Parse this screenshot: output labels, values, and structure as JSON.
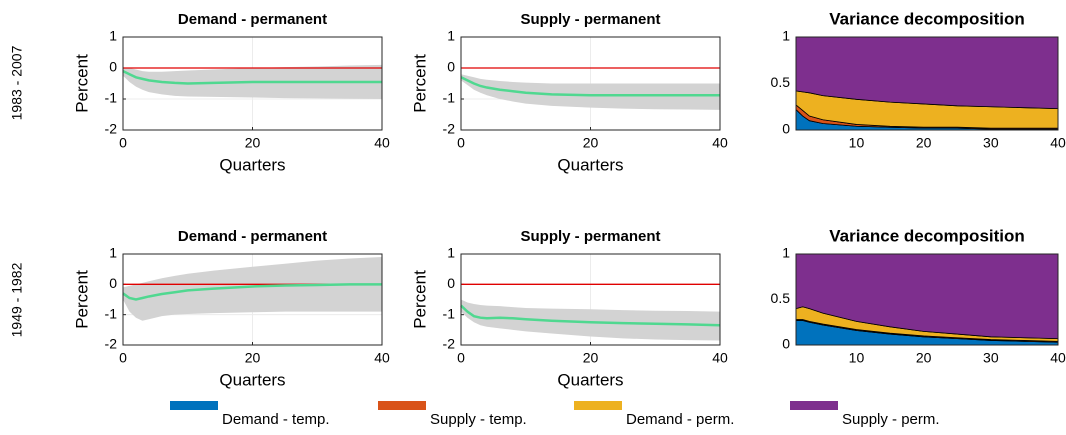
{
  "row_labels": [
    "1983 - 2007",
    "1949 - 1982"
  ],
  "chart_data": [
    {
      "type": "line",
      "title": "Demand - permanent",
      "xlabel": "Quarters",
      "ylabel": "Percent",
      "grid": true,
      "xlim": [
        0,
        40
      ],
      "ylim": [
        -2,
        1
      ],
      "xticks": [
        0,
        20,
        40
      ],
      "yticks": [
        -2,
        -1,
        0,
        1
      ],
      "reference_line": {
        "value": 0,
        "color": "#e00000"
      },
      "x": [
        0,
        1,
        2,
        3,
        4,
        6,
        8,
        10,
        14,
        20,
        25,
        30,
        35,
        40
      ],
      "line": {
        "color": "#50d890",
        "values": [
          -0.1,
          -0.2,
          -0.3,
          -0.35,
          -0.4,
          -0.45,
          -0.48,
          -0.5,
          -0.48,
          -0.45,
          -0.45,
          -0.45,
          -0.45,
          -0.45
        ]
      },
      "band": {
        "color": "#d3d3d3",
        "lower": [
          -0.25,
          -0.45,
          -0.6,
          -0.7,
          -0.78,
          -0.85,
          -0.9,
          -0.92,
          -0.93,
          -0.95,
          -0.97,
          -0.98,
          -0.99,
          -1.0
        ],
        "upper": [
          0,
          0,
          -0.05,
          -0.1,
          -0.12,
          -0.12,
          -0.1,
          -0.08,
          -0.05,
          0,
          0.03,
          0.05,
          0.08,
          0.1
        ]
      }
    },
    {
      "type": "line",
      "title": "Supply - permanent",
      "xlabel": "Quarters",
      "ylabel": "Percent",
      "grid": true,
      "xlim": [
        0,
        40
      ],
      "ylim": [
        -2,
        1
      ],
      "xticks": [
        0,
        20,
        40
      ],
      "yticks": [
        -2,
        -1,
        0,
        1
      ],
      "reference_line": {
        "value": 0,
        "color": "#e00000"
      },
      "x": [
        0,
        1,
        2,
        3,
        4,
        6,
        8,
        10,
        14,
        20,
        25,
        30,
        35,
        40
      ],
      "line": {
        "color": "#50d890",
        "values": [
          -0.3,
          -0.4,
          -0.5,
          -0.58,
          -0.63,
          -0.7,
          -0.75,
          -0.8,
          -0.85,
          -0.88,
          -0.88,
          -0.88,
          -0.88,
          -0.88
        ]
      },
      "band": {
        "color": "#d3d3d3",
        "lower": [
          -0.4,
          -0.55,
          -0.7,
          -0.8,
          -0.88,
          -1.0,
          -1.08,
          -1.15,
          -1.22,
          -1.28,
          -1.31,
          -1.33,
          -1.34,
          -1.35
        ],
        "upper": [
          -0.2,
          -0.25,
          -0.3,
          -0.35,
          -0.38,
          -0.42,
          -0.45,
          -0.47,
          -0.5,
          -0.5,
          -0.5,
          -0.5,
          -0.5,
          -0.5
        ]
      }
    },
    {
      "type": "area",
      "title": "Variance decomposition",
      "xlim": [
        1,
        40
      ],
      "ylim": [
        0,
        1
      ],
      "xticks": [
        10,
        20,
        30,
        40
      ],
      "yticks": [
        0,
        0.5,
        1
      ],
      "x": [
        1,
        2,
        3,
        5,
        10,
        15,
        20,
        25,
        30,
        35,
        40
      ],
      "series": [
        {
          "name": "Demand - temp.",
          "color": "#0072bd",
          "values": [
            0.22,
            0.15,
            0.1,
            0.07,
            0.04,
            0.03,
            0.02,
            0.02,
            0.01,
            0.01,
            0.01
          ]
        },
        {
          "name": "Supply - temp.",
          "color": "#d95319",
          "values": [
            0.05,
            0.06,
            0.05,
            0.04,
            0.02,
            0.01,
            0.01,
            0.01,
            0.01,
            0.01,
            0.01
          ]
        },
        {
          "name": "Demand - perm.",
          "color": "#edb120",
          "values": [
            0.15,
            0.2,
            0.25,
            0.26,
            0.27,
            0.26,
            0.25,
            0.23,
            0.23,
            0.22,
            0.21
          ]
        },
        {
          "name": "Supply - perm.",
          "color": "#7e2f8e",
          "values": [
            0.58,
            0.59,
            0.6,
            0.63,
            0.67,
            0.7,
            0.72,
            0.74,
            0.75,
            0.76,
            0.77
          ]
        }
      ]
    },
    {
      "type": "line",
      "title": "Demand - permanent",
      "xlabel": "Quarters",
      "ylabel": "Percent",
      "grid": true,
      "xlim": [
        0,
        40
      ],
      "ylim": [
        -2,
        1
      ],
      "xticks": [
        0,
        20,
        40
      ],
      "yticks": [
        -2,
        -1,
        0,
        1
      ],
      "reference_line": {
        "value": 0,
        "color": "#e00000"
      },
      "x": [
        0,
        1,
        2,
        3,
        4,
        6,
        8,
        10,
        14,
        20,
        25,
        30,
        35,
        40
      ],
      "line": {
        "color": "#50d890",
        "values": [
          -0.3,
          -0.45,
          -0.5,
          -0.45,
          -0.4,
          -0.32,
          -0.26,
          -0.2,
          -0.14,
          -0.07,
          -0.04,
          -0.02,
          0,
          0
        ]
      },
      "band": {
        "color": "#d3d3d3",
        "lower": [
          -0.5,
          -0.9,
          -1.1,
          -1.2,
          -1.15,
          -1.05,
          -1.0,
          -0.98,
          -0.95,
          -0.92,
          -0.9,
          -0.9,
          -0.9,
          -0.9
        ],
        "upper": [
          -0.1,
          -0.05,
          0,
          0.05,
          0.1,
          0.2,
          0.28,
          0.35,
          0.45,
          0.58,
          0.68,
          0.78,
          0.85,
          0.9
        ]
      }
    },
    {
      "type": "line",
      "title": "Supply - permanent",
      "xlabel": "Quarters",
      "ylabel": "Percent",
      "grid": true,
      "xlim": [
        0,
        40
      ],
      "ylim": [
        -2,
        1
      ],
      "xticks": [
        0,
        20,
        40
      ],
      "yticks": [
        -2,
        -1,
        0,
        1
      ],
      "reference_line": {
        "value": 0,
        "color": "#e00000"
      },
      "x": [
        0,
        1,
        2,
        3,
        4,
        6,
        8,
        10,
        14,
        20,
        25,
        30,
        35,
        40
      ],
      "line": {
        "color": "#50d890",
        "values": [
          -0.7,
          -0.9,
          -1.05,
          -1.1,
          -1.12,
          -1.1,
          -1.12,
          -1.15,
          -1.2,
          -1.25,
          -1.28,
          -1.3,
          -1.32,
          -1.35
        ]
      },
      "band": {
        "color": "#d3d3d3",
        "lower": [
          -0.9,
          -1.1,
          -1.25,
          -1.35,
          -1.4,
          -1.45,
          -1.5,
          -1.55,
          -1.62,
          -1.72,
          -1.78,
          -1.82,
          -1.84,
          -1.85
        ],
        "upper": [
          -0.5,
          -0.6,
          -0.65,
          -0.68,
          -0.7,
          -0.72,
          -0.75,
          -0.78,
          -0.8,
          -0.82,
          -0.85,
          -0.87,
          -0.88,
          -0.9
        ]
      }
    },
    {
      "type": "area",
      "title": "Variance decomposition",
      "xlim": [
        1,
        40
      ],
      "ylim": [
        0,
        1
      ],
      "xticks": [
        10,
        20,
        30,
        40
      ],
      "yticks": [
        0,
        0.5,
        1
      ],
      "x": [
        1,
        2,
        3,
        5,
        10,
        15,
        20,
        25,
        30,
        35,
        40
      ],
      "series": [
        {
          "name": "Demand - temp.",
          "color": "#0072bd",
          "values": [
            0.27,
            0.27,
            0.25,
            0.22,
            0.16,
            0.12,
            0.09,
            0.07,
            0.05,
            0.04,
            0.03
          ]
        },
        {
          "name": "Supply - temp.",
          "color": "#d95319",
          "values": [
            0.01,
            0.01,
            0.01,
            0.01,
            0.01,
            0.01,
            0.01,
            0.01,
            0.01,
            0.01,
            0.01
          ]
        },
        {
          "name": "Demand - perm.",
          "color": "#edb120",
          "values": [
            0.12,
            0.14,
            0.14,
            0.12,
            0.09,
            0.07,
            0.05,
            0.04,
            0.03,
            0.03,
            0.03
          ]
        },
        {
          "name": "Supply - perm.",
          "color": "#7e2f8e",
          "values": [
            0.6,
            0.58,
            0.6,
            0.65,
            0.74,
            0.8,
            0.85,
            0.88,
            0.91,
            0.92,
            0.93
          ]
        }
      ]
    }
  ]
}
